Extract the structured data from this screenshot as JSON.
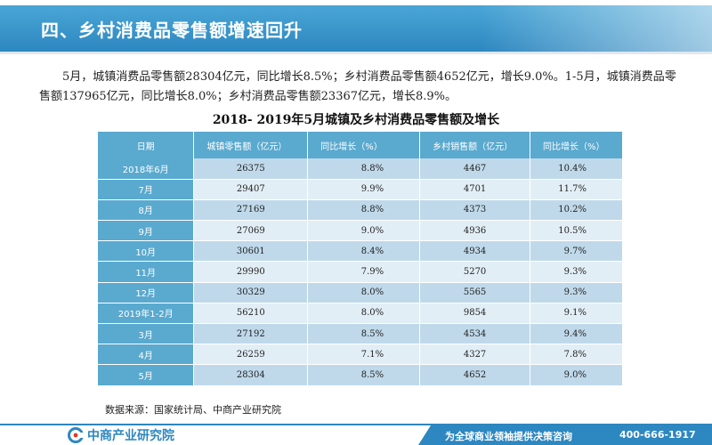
{
  "header": {
    "title": "四、乡村消费品零售额增速回升"
  },
  "paragraph": "5月，城镇消费品零售额28304亿元，同比增长8.5%；乡村消费品零售额4652亿元，增长9.0%。1-5月，城镇消费品零售额137965亿元，同比增长8.0%；乡村消费品零售额23367亿元，增长8.9%。",
  "table": {
    "title": "2018- 2019年5月城镇及乡村消费品零售额及增长",
    "headers": [
      "日期",
      "城镇零售额（亿元）",
      "同比增长（%）",
      "乡村销售额（亿元）",
      "同比增长（%）"
    ],
    "rows": [
      [
        "2018年6月",
        "26375",
        "8.8%",
        "4467",
        "10.4%"
      ],
      [
        "7月",
        "29407",
        "9.9%",
        "4701",
        "11.7%"
      ],
      [
        "8月",
        "27169",
        "8.8%",
        "4373",
        "10.2%"
      ],
      [
        "9月",
        "27069",
        "9.0%",
        "4936",
        "10.5%"
      ],
      [
        "10月",
        "30601",
        "8.4%",
        "4934",
        "9.7%"
      ],
      [
        "11月",
        "29990",
        "7.9%",
        "5270",
        "9.3%"
      ],
      [
        "12月",
        "30329",
        "8.0%",
        "5565",
        "9.3%"
      ],
      [
        "2019年1-2月",
        "56210",
        "8.0%",
        "9854",
        "9.1%"
      ],
      [
        "3月",
        "27192",
        "8.5%",
        "4534",
        "9.4%"
      ],
      [
        "4月",
        "26259",
        "7.1%",
        "4327",
        "7.8%"
      ],
      [
        "5月",
        "28304",
        "8.5%",
        "4652",
        "9.0%"
      ]
    ]
  },
  "source": "数据来源：国家统计局、中商产业研究院",
  "footer": {
    "logo_text": "中商产业研究院",
    "slogan": "为全球商业领袖提供决策咨询",
    "phone": "400-666-1917"
  },
  "colors": {
    "brand_blue": "#2d87c0",
    "header_cell": "#5aa9cf",
    "row_odd": "#bfd9ea",
    "row_even": "#e2eef6"
  }
}
